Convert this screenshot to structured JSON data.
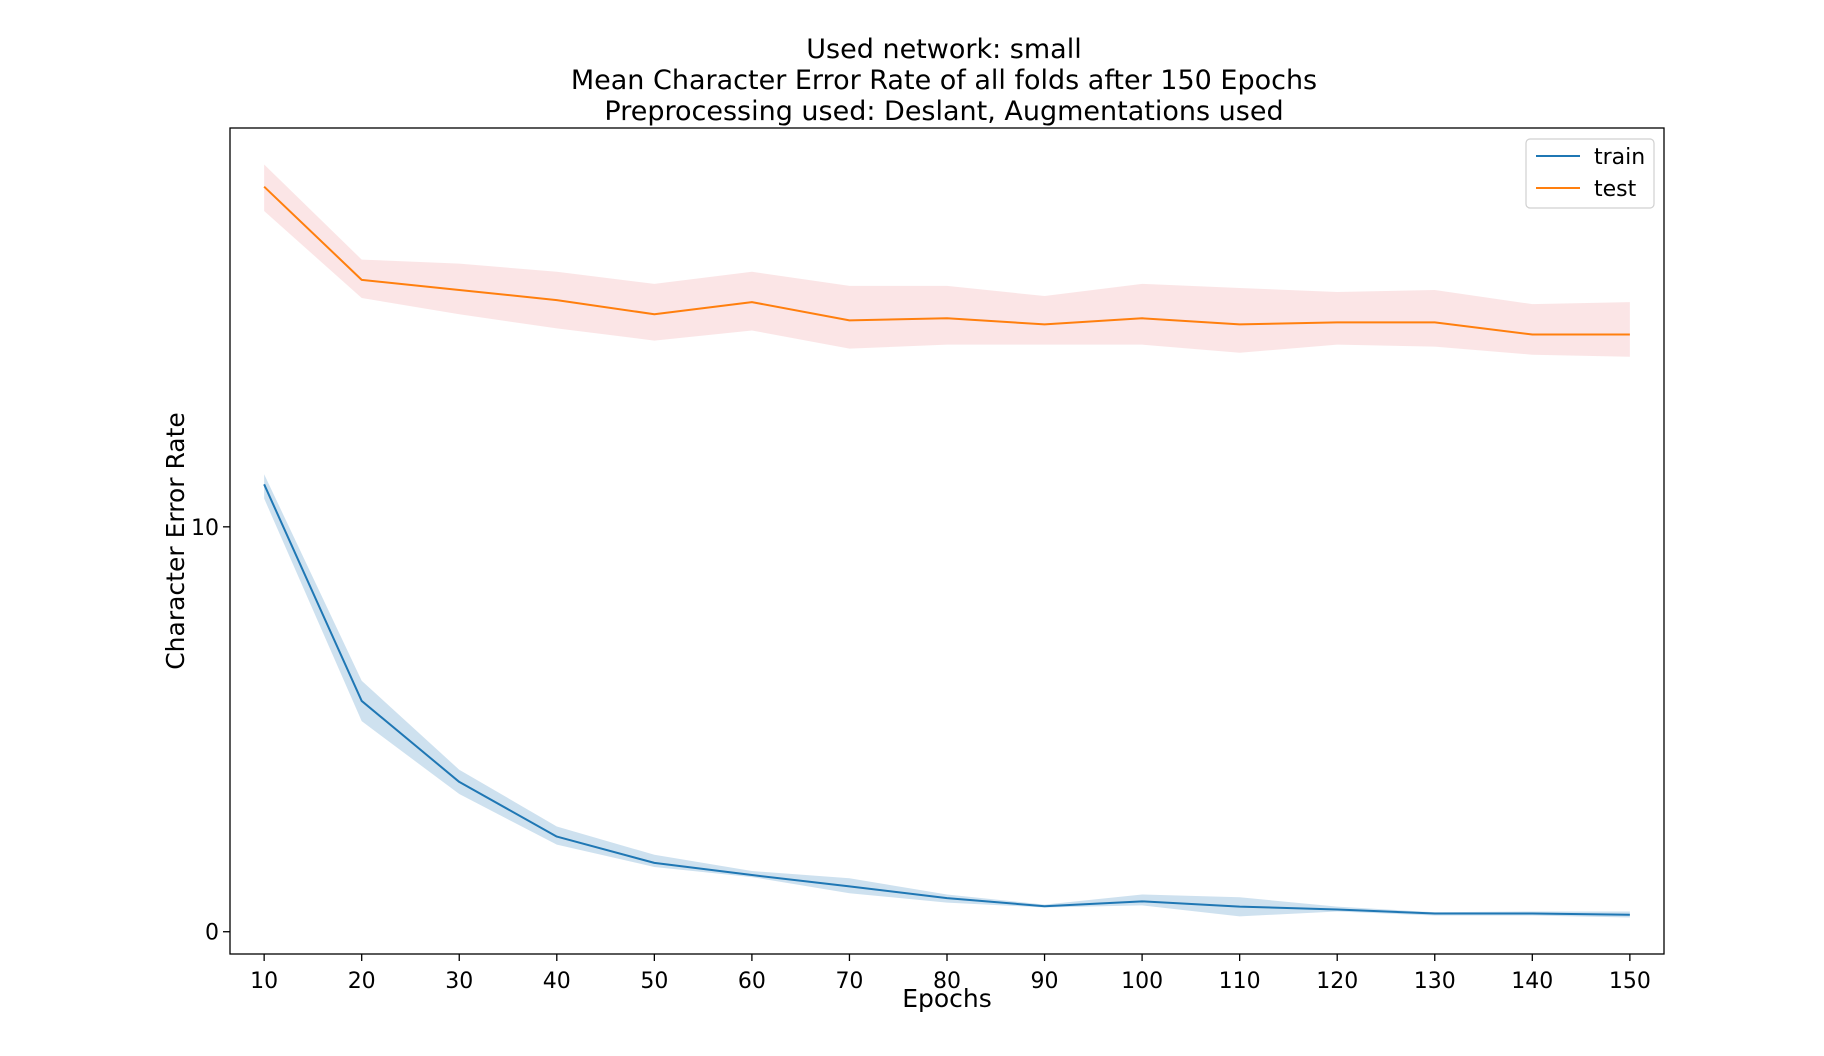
{
  "chart_data": {
    "type": "line",
    "title_lines": [
      "Used network: small",
      "Mean Character Error Rate of all folds after 150 Epochs",
      "Preprocessing used: Deslant, Augmentations used"
    ],
    "xlabel": "Epochs",
    "ylabel": "Character Error Rate",
    "x": [
      10,
      20,
      30,
      40,
      50,
      60,
      70,
      80,
      90,
      100,
      110,
      120,
      130,
      140,
      150
    ],
    "x_tick_labels": [
      "10",
      "20",
      "30",
      "40",
      "50",
      "60",
      "70",
      "80",
      "90",
      "100",
      "110",
      "120",
      "130",
      "140",
      "150"
    ],
    "y_ticks": [
      0,
      10
    ],
    "y_tick_labels": [
      "0",
      "10"
    ],
    "xlim": [
      6.5,
      153.5
    ],
    "ylim": [
      -0.55,
      19.85
    ],
    "grid": false,
    "legend_position": "top-right",
    "series": [
      {
        "name": "train",
        "color": "#1f77b4",
        "band_color": "#1f77b4",
        "values": [
          11.05,
          5.7,
          3.7,
          2.35,
          1.7,
          1.4,
          1.12,
          0.83,
          0.63,
          0.75,
          0.62,
          0.55,
          0.45,
          0.45,
          0.42
        ],
        "upper": [
          11.3,
          6.2,
          4.0,
          2.6,
          1.9,
          1.5,
          1.32,
          0.92,
          0.67,
          0.92,
          0.85,
          0.62,
          0.48,
          0.5,
          0.5
        ],
        "lower": [
          10.7,
          5.2,
          3.4,
          2.15,
          1.6,
          1.35,
          0.95,
          0.72,
          0.6,
          0.65,
          0.38,
          0.5,
          0.4,
          0.4,
          0.35
        ]
      },
      {
        "name": "test",
        "color": "#ff7f0e",
        "band_color": "#e8676a",
        "values": [
          18.4,
          16.1,
          15.85,
          15.6,
          15.25,
          15.55,
          15.1,
          15.15,
          15.0,
          15.15,
          15.0,
          15.05,
          15.05,
          14.75,
          14.75
        ],
        "upper": [
          18.95,
          16.6,
          16.5,
          16.3,
          16.0,
          16.3,
          15.95,
          15.95,
          15.7,
          16.0,
          15.9,
          15.8,
          15.85,
          15.5,
          15.55
        ],
        "lower": [
          17.8,
          15.65,
          15.25,
          14.9,
          14.6,
          14.85,
          14.4,
          14.5,
          14.5,
          14.5,
          14.3,
          14.5,
          14.45,
          14.25,
          14.2
        ]
      }
    ]
  }
}
